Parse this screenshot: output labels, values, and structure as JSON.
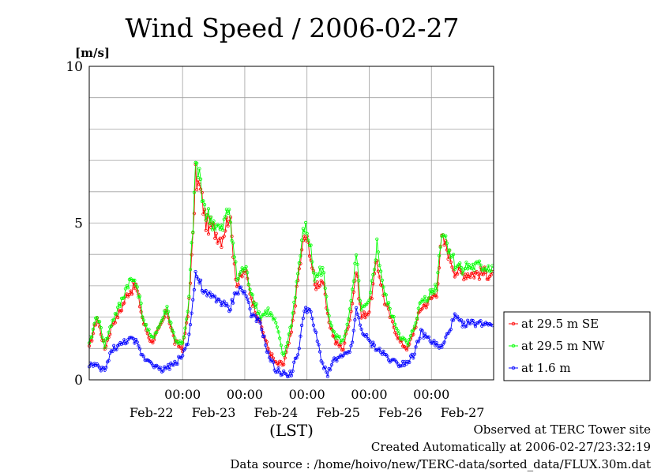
{
  "chart_data": {
    "type": "line",
    "title": "Wind Speed / 2006-02-27",
    "ylabel": "[m/s]",
    "xlabel": "(LST)",
    "ylim": [
      0,
      10
    ],
    "y_ticks": [
      0,
      5,
      10
    ],
    "xlim": [
      "2006-02-21T12:00",
      "2006-02-27T24:00"
    ],
    "x_tick_labels": [
      "00:00",
      "00:00",
      "00:00",
      "00:00",
      "00:00"
    ],
    "x_tick_times": [
      "2006-02-23T00:00",
      "2006-02-24T00:00",
      "2006-02-25T00:00",
      "2006-02-26T00:00",
      "2006-02-27T00:00"
    ],
    "date_labels": [
      "Feb-22",
      "Feb-23",
      "Feb-24",
      "Feb-25",
      "Feb-26",
      "Feb-27"
    ],
    "date_label_times": [
      "2006-02-22T12:00",
      "2006-02-23T12:00",
      "2006-02-24T12:00",
      "2006-02-25T12:00",
      "2006-02-26T12:00",
      "2006-02-27T12:00"
    ],
    "interval_minutes": 30,
    "grid": true,
    "legend_position": "right",
    "series": [
      {
        "name": "at 29.5 m SE",
        "color": "#ff0000",
        "knots": [
          [
            0,
            1.0
          ],
          [
            6,
            2.0
          ],
          [
            12,
            1.0
          ],
          [
            18,
            1.8
          ],
          [
            24,
            2.2
          ],
          [
            30,
            2.8
          ],
          [
            36,
            3.0
          ],
          [
            42,
            1.8
          ],
          [
            48,
            1.2
          ],
          [
            54,
            1.6
          ],
          [
            60,
            2.2
          ],
          [
            66,
            1.2
          ],
          [
            72,
            1.0
          ],
          [
            76,
            2.0
          ],
          [
            80,
            4.5
          ],
          [
            82,
            6.5
          ],
          [
            86,
            6.0
          ],
          [
            90,
            5.0
          ],
          [
            96,
            4.8
          ],
          [
            102,
            4.5
          ],
          [
            108,
            5.3
          ],
          [
            114,
            3.0
          ],
          [
            120,
            3.5
          ],
          [
            126,
            2.5
          ],
          [
            132,
            1.8
          ],
          [
            138,
            1.0
          ],
          [
            144,
            0.5
          ],
          [
            150,
            0.5
          ],
          [
            156,
            1.5
          ],
          [
            162,
            3.5
          ],
          [
            166,
            4.6
          ],
          [
            170,
            4.2
          ],
          [
            174,
            3.0
          ],
          [
            180,
            3.2
          ],
          [
            184,
            2.0
          ],
          [
            190,
            1.2
          ],
          [
            196,
            1.0
          ],
          [
            202,
            2.2
          ],
          [
            206,
            3.5
          ],
          [
            210,
            2.0
          ],
          [
            216,
            2.2
          ],
          [
            222,
            3.8
          ],
          [
            228,
            2.5
          ],
          [
            234,
            1.8
          ],
          [
            240,
            1.2
          ],
          [
            246,
            1.0
          ],
          [
            250,
            1.5
          ],
          [
            256,
            2.3
          ],
          [
            262,
            2.5
          ],
          [
            268,
            2.8
          ],
          [
            272,
            4.5
          ],
          [
            276,
            4.2
          ],
          [
            282,
            3.5
          ],
          [
            287,
            3.4
          ]
        ]
      },
      {
        "name": "at 29.5 m NW",
        "color": "#00ff00",
        "knots": [
          [
            0,
            1.1
          ],
          [
            6,
            2.1
          ],
          [
            12,
            1.1
          ],
          [
            18,
            1.9
          ],
          [
            24,
            2.4
          ],
          [
            30,
            3.1
          ],
          [
            36,
            3.2
          ],
          [
            42,
            1.9
          ],
          [
            48,
            1.3
          ],
          [
            54,
            1.7
          ],
          [
            60,
            2.3
          ],
          [
            66,
            1.3
          ],
          [
            72,
            1.1
          ],
          [
            76,
            2.1
          ],
          [
            80,
            4.8
          ],
          [
            82,
            6.9
          ],
          [
            86,
            6.3
          ],
          [
            90,
            5.3
          ],
          [
            96,
            5.0
          ],
          [
            102,
            4.7
          ],
          [
            108,
            5.5
          ],
          [
            114,
            3.2
          ],
          [
            120,
            3.6
          ],
          [
            126,
            2.7
          ],
          [
            132,
            2.0
          ],
          [
            138,
            2.2
          ],
          [
            144,
            1.8
          ],
          [
            150,
            0.7
          ],
          [
            156,
            1.8
          ],
          [
            162,
            3.7
          ],
          [
            166,
            4.9
          ],
          [
            170,
            4.4
          ],
          [
            174,
            3.2
          ],
          [
            180,
            3.6
          ],
          [
            184,
            2.2
          ],
          [
            190,
            1.4
          ],
          [
            196,
            1.2
          ],
          [
            202,
            2.4
          ],
          [
            206,
            3.9
          ],
          [
            210,
            2.2
          ],
          [
            216,
            2.4
          ],
          [
            222,
            4.3
          ],
          [
            228,
            2.7
          ],
          [
            234,
            2.0
          ],
          [
            240,
            1.4
          ],
          [
            246,
            1.1
          ],
          [
            250,
            1.6
          ],
          [
            256,
            2.5
          ],
          [
            262,
            2.7
          ],
          [
            268,
            3.0
          ],
          [
            272,
            4.8
          ],
          [
            276,
            4.4
          ],
          [
            282,
            3.7
          ],
          [
            287,
            3.6
          ]
        ]
      },
      {
        "name": "at 1.6 m",
        "color": "#0000ff",
        "knots": [
          [
            0,
            0.5
          ],
          [
            6,
            0.4
          ],
          [
            12,
            0.3
          ],
          [
            18,
            1.0
          ],
          [
            24,
            1.1
          ],
          [
            30,
            1.3
          ],
          [
            36,
            1.2
          ],
          [
            42,
            0.7
          ],
          [
            48,
            0.6
          ],
          [
            54,
            0.3
          ],
          [
            60,
            0.4
          ],
          [
            66,
            0.5
          ],
          [
            72,
            0.8
          ],
          [
            76,
            1.2
          ],
          [
            80,
            2.5
          ],
          [
            82,
            3.4
          ],
          [
            86,
            3.0
          ],
          [
            90,
            2.7
          ],
          [
            96,
            2.6
          ],
          [
            102,
            2.5
          ],
          [
            108,
            2.2
          ],
          [
            114,
            2.9
          ],
          [
            120,
            2.8
          ],
          [
            126,
            2.0
          ],
          [
            132,
            1.8
          ],
          [
            138,
            0.8
          ],
          [
            144,
            0.3
          ],
          [
            150,
            0.2
          ],
          [
            156,
            0.2
          ],
          [
            162,
            1.0
          ],
          [
            166,
            2.3
          ],
          [
            170,
            2.2
          ],
          [
            174,
            1.6
          ],
          [
            180,
            0.5
          ],
          [
            184,
            0.2
          ],
          [
            190,
            0.7
          ],
          [
            196,
            0.7
          ],
          [
            202,
            1.0
          ],
          [
            206,
            2.2
          ],
          [
            210,
            1.6
          ],
          [
            216,
            1.2
          ],
          [
            222,
            1.0
          ],
          [
            228,
            0.8
          ],
          [
            234,
            0.6
          ],
          [
            240,
            0.5
          ],
          [
            246,
            0.6
          ],
          [
            250,
            0.8
          ],
          [
            256,
            1.5
          ],
          [
            262,
            1.3
          ],
          [
            268,
            1.1
          ],
          [
            272,
            1.0
          ],
          [
            276,
            1.4
          ],
          [
            282,
            2.0
          ],
          [
            287,
            1.8
          ]
        ]
      }
    ]
  },
  "footer": {
    "observed": "Observed at TERC Tower site",
    "created": "Created Automatically at 2006-02-27/23:32:19",
    "source": "Data source : /home/hoivo/new/TERC-data/sorted_data/FLUX.30m.dat"
  }
}
